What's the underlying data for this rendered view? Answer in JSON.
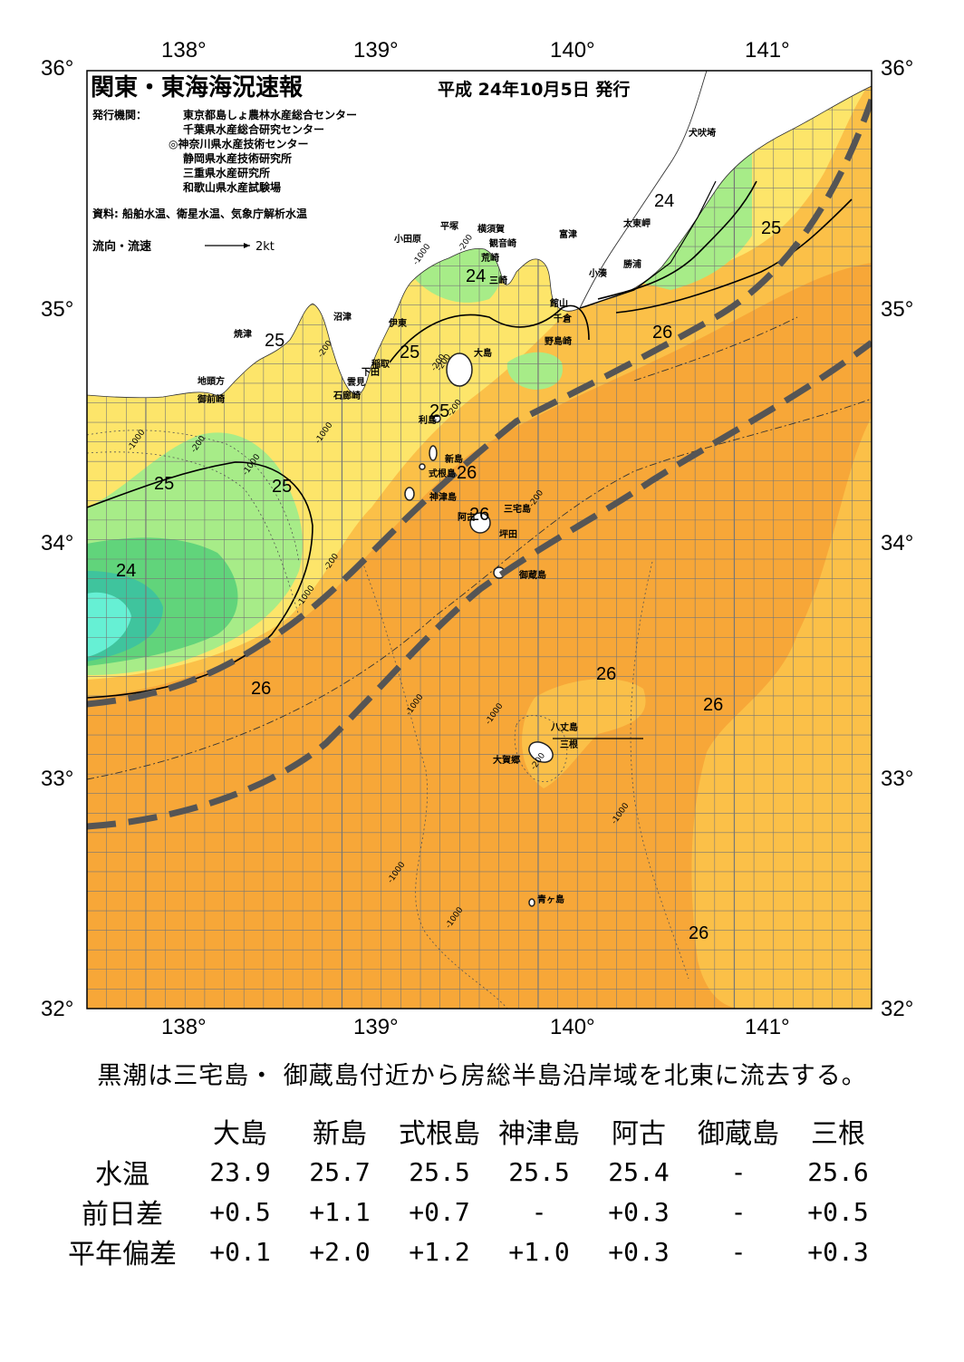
{
  "header": {
    "title": "関東・東海海況速報",
    "date": "平成 24年10月5日 発行",
    "issuer_label": "発行機関：",
    "issuers": [
      "東京都島しょ農林水産総合センター",
      "千葉県水産総合研究センター",
      "◎神奈川県水産技術センター",
      "静岡県水産技術研究所",
      "三重県水産研究所",
      "和歌山県水産試験場"
    ],
    "source": "資料: 船舶水温、衛星水温、気象庁解析水温",
    "flow_legend": "流向・流速",
    "flow_unit": "2kt"
  },
  "axes": {
    "top_lon": [
      "138°",
      "139°",
      "140°",
      "141°"
    ],
    "bottom_lon": [
      "138°",
      "139°",
      "140°",
      "141°"
    ],
    "left_lat": [
      "36°",
      "35°",
      "34°",
      "33°",
      "32°"
    ],
    "right_lat": [
      "36°",
      "35°",
      "34°",
      "33°",
      "32°"
    ]
  },
  "colors": {
    "sea_26plus": "#f7a738",
    "sea_26": "#fbc048",
    "sea_25": "#fde56a",
    "sea_24_5": "#f6f68c",
    "sea_24": "#a7ec88",
    "sea_23": "#61d47b",
    "sea_22": "#3fc49d",
    "sea_21": "#66f0d4",
    "land": "#ffffff",
    "kuroshio_path": "#555555"
  },
  "map": {
    "place_labels": [
      "小田原",
      "平塚",
      "横須賀",
      "観音崎",
      "富津",
      "荒崎",
      "三崎",
      "犬吠埼",
      "太東岬",
      "勝浦",
      "小湊",
      "館山",
      "千倉",
      "野島崎",
      "沼津",
      "伊東",
      "焼津",
      "稲取",
      "下田",
      "雲見",
      "石廊崎",
      "地頭方",
      "御前崎",
      "大島",
      "利島",
      "新島",
      "式根島",
      "神津島",
      "三宅島",
      "阿古",
      "坪田",
      "御蔵島",
      "八丈島",
      "三根",
      "大賀郷",
      "青ヶ島"
    ],
    "isotherm_labels": [
      "24",
      "25",
      "24",
      "25",
      "26",
      "25",
      "25",
      "26",
      "26",
      "25",
      "25",
      "24",
      "26",
      "26",
      "26",
      "26",
      "26"
    ],
    "depth_labels": [
      "-1000",
      "-200",
      "-1000",
      "-200",
      "-200",
      "-200",
      "-1000",
      "-200",
      "-1000",
      "-200",
      "-200",
      "-1000",
      "-200",
      "-1000",
      "-1000",
      "-1000",
      "-1000",
      "-1000",
      "-200"
    ]
  },
  "summary": "黒潮は三宅島・ 御蔵島付近から房総半島沿岸域を北東に流去する。",
  "table": {
    "columns": [
      "大島",
      "新島",
      "式根島",
      "神津島",
      "阿古",
      "御蔵島",
      "三根"
    ],
    "rows": [
      {
        "label": "水温",
        "values": [
          "23.9",
          "25.7",
          "25.5",
          "25.5",
          "25.4",
          "-",
          "25.6"
        ]
      },
      {
        "label": "前日差",
        "values": [
          "+0.5",
          "+1.1",
          "+0.7",
          "-",
          "+0.3",
          "-",
          "+0.5"
        ]
      },
      {
        "label": "平年偏差",
        "values": [
          "+0.1",
          "+2.0",
          "+1.2",
          "+1.0",
          "+0.3",
          "-",
          "+0.3"
        ]
      }
    ]
  }
}
